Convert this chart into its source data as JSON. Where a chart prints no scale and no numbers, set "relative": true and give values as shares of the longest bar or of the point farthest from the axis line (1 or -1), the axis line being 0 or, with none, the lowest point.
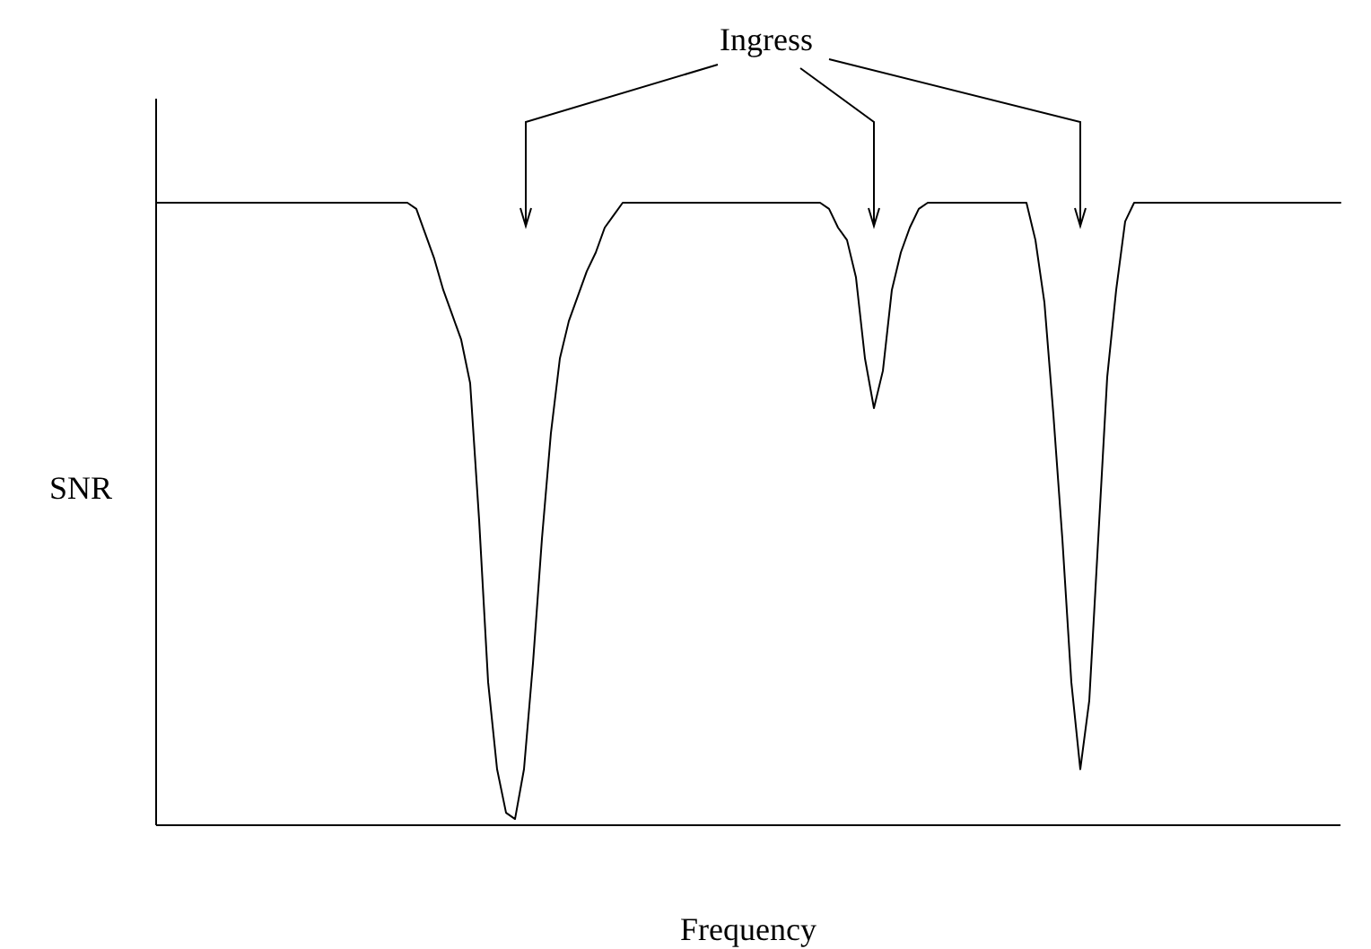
{
  "chart_data": {
    "type": "line",
    "xlabel": "Frequency",
    "ylabel": "SNR",
    "relative": true,
    "annotations": [
      "Ingress"
    ],
    "categories": [
      null,
      null,
      null,
      null,
      null,
      null,
      null,
      null,
      null,
      null,
      null,
      null,
      null,
      null,
      null,
      null,
      null,
      null,
      null,
      null,
      null,
      null,
      null,
      null,
      null,
      null,
      null,
      null,
      null,
      null,
      null,
      null,
      null,
      null,
      null,
      null,
      null,
      null,
      null,
      null,
      null,
      null,
      null,
      null,
      null,
      null,
      null,
      null,
      null,
      null,
      null,
      null,
      null,
      null,
      null,
      null,
      null,
      null,
      null,
      null,
      null,
      null,
      null,
      null,
      null,
      null,
      null,
      null,
      null,
      null,
      null,
      null,
      null,
      null,
      null,
      null,
      null,
      null,
      null,
      null,
      null,
      null,
      null,
      null,
      null,
      null,
      null,
      null,
      null,
      null,
      null,
      null,
      null,
      null,
      null,
      null,
      null,
      null,
      null,
      null,
      null,
      null,
      null,
      null,
      null,
      null,
      null,
      null,
      null,
      null,
      null,
      null,
      null,
      null,
      null,
      null,
      null,
      null,
      null,
      null,
      null,
      null,
      null,
      null,
      null,
      null,
      null,
      null,
      null,
      null,
      null,
      null,
      null
    ],
    "series": [
      {
        "color": "#000000",
        "values": [
          1,
          1,
          1,
          1,
          1,
          1,
          1,
          1,
          1,
          1,
          1,
          1,
          1,
          1,
          1,
          1,
          1,
          1,
          1,
          1,
          1,
          1,
          1,
          1,
          1,
          1,
          1,
          1,
          1,
          0.99,
          0.95,
          0.91,
          0.86,
          0.82,
          0.78,
          0.71,
          0.49,
          0.23,
          0.09,
          0.02,
          0.01,
          0.09,
          0.26,
          0.46,
          0.63,
          0.75,
          0.81,
          0.85,
          0.89,
          0.92,
          0.96,
          0.98,
          1,
          1,
          1,
          1,
          1,
          1,
          1,
          1,
          1,
          1,
          1,
          1,
          1,
          1,
          1,
          1,
          1,
          1,
          1,
          1,
          1,
          1,
          1,
          0.99,
          0.96,
          0.94,
          0.88,
          0.75,
          0.67,
          0.73,
          0.86,
          0.92,
          0.96,
          0.99,
          1,
          1,
          1,
          1,
          1,
          1,
          1,
          1,
          1,
          1,
          1,
          1,
          0.94,
          0.84,
          0.66,
          0.46,
          0.23,
          0.09,
          0.2,
          0.46,
          0.72,
          0.86,
          0.97,
          1,
          1,
          1,
          1,
          1,
          1,
          1,
          1,
          1,
          1,
          1,
          1,
          1,
          1,
          1,
          1,
          1,
          1,
          1,
          1,
          1,
          1,
          1,
          1
        ]
      }
    ]
  }
}
